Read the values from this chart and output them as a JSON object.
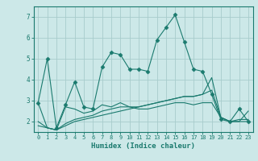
{
  "x": [
    0,
    1,
    2,
    3,
    4,
    5,
    6,
    7,
    8,
    9,
    10,
    11,
    12,
    13,
    14,
    15,
    16,
    17,
    18,
    19,
    20,
    21,
    22,
    23
  ],
  "line1": [
    2.9,
    5.0,
    1.7,
    2.8,
    3.9,
    2.7,
    2.6,
    4.6,
    5.3,
    5.2,
    4.5,
    4.5,
    4.4,
    5.9,
    6.5,
    7.1,
    5.8,
    4.5,
    4.4,
    3.3,
    2.1,
    2.0,
    2.6,
    2.0
  ],
  "line2": [
    2.9,
    1.7,
    1.6,
    2.7,
    2.6,
    2.4,
    2.5,
    2.8,
    2.7,
    2.9,
    2.7,
    2.6,
    2.6,
    2.7,
    2.8,
    2.9,
    2.9,
    2.8,
    2.9,
    2.9,
    2.2,
    2.0,
    2.1,
    2.1
  ],
  "line3": [
    2.0,
    1.7,
    1.6,
    1.9,
    2.1,
    2.2,
    2.3,
    2.5,
    2.6,
    2.7,
    2.7,
    2.7,
    2.8,
    2.9,
    3.0,
    3.1,
    3.2,
    3.2,
    3.3,
    3.5,
    2.2,
    2.0,
    2.0,
    2.5
  ],
  "line4": [
    1.8,
    1.7,
    1.6,
    1.8,
    2.0,
    2.1,
    2.2,
    2.3,
    2.4,
    2.5,
    2.6,
    2.7,
    2.8,
    2.9,
    3.0,
    3.1,
    3.2,
    3.2,
    3.3,
    4.1,
    2.2,
    2.0,
    2.0,
    2.0
  ],
  "color": "#1a7a6e",
  "bg_color": "#cce8e8",
  "grid_color": "#a8cccc",
  "xlabel": "Humidex (Indice chaleur)",
  "ylim": [
    1.5,
    7.5
  ],
  "xlim": [
    -0.5,
    23.5
  ],
  "yticks": [
    2,
    3,
    4,
    5,
    6,
    7
  ],
  "xticks": [
    0,
    1,
    2,
    3,
    4,
    5,
    6,
    7,
    8,
    9,
    10,
    11,
    12,
    13,
    14,
    15,
    16,
    17,
    18,
    19,
    20,
    21,
    22,
    23
  ],
  "marker": "D",
  "markersize": 2.5,
  "linewidth": 0.8
}
